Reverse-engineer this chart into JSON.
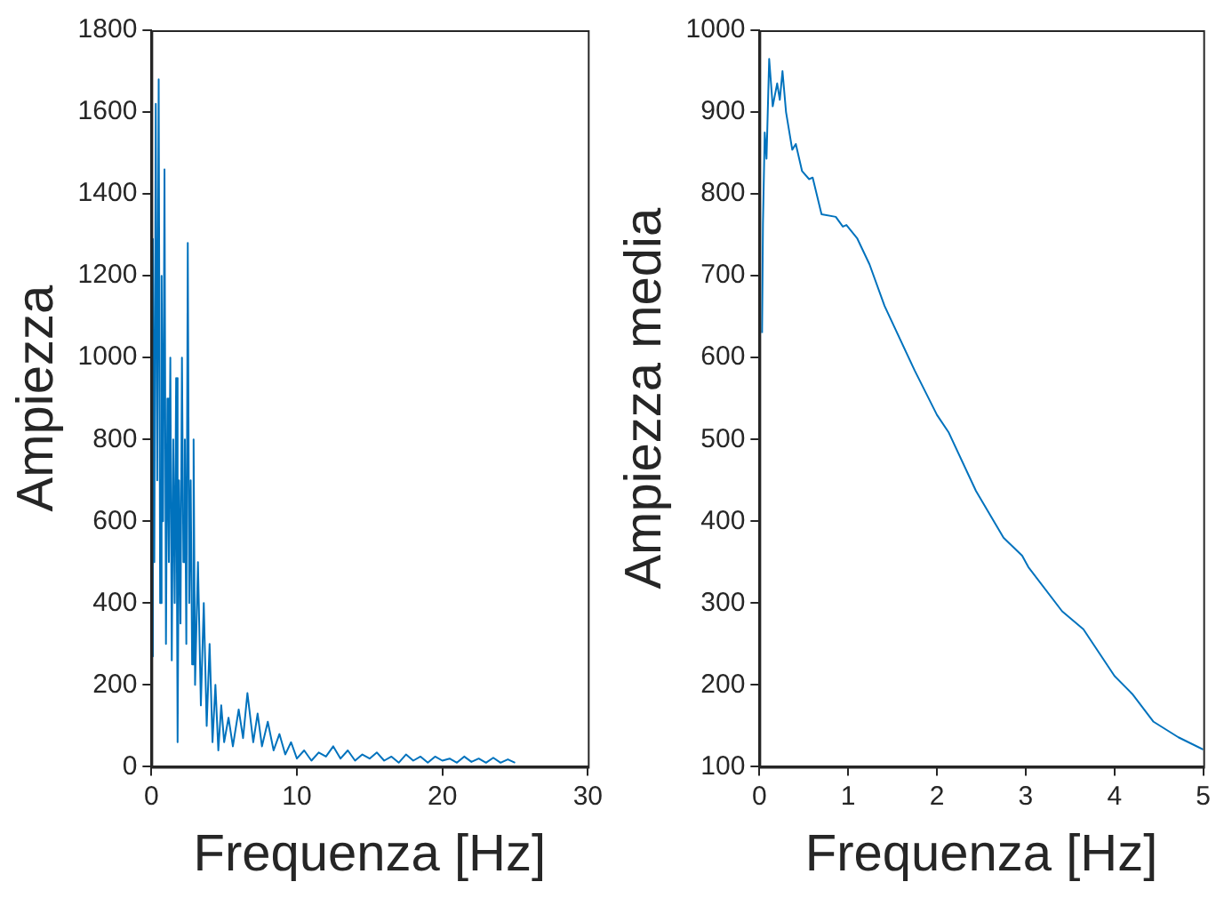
{
  "chart_data": [
    {
      "type": "line",
      "xlabel": "Frequenza [Hz]",
      "ylabel": "Ampiezza",
      "xlim": [
        0,
        30
      ],
      "xticks": [
        0,
        10,
        20,
        30
      ],
      "ylim": [
        0,
        1800
      ],
      "yticks": [
        0,
        200,
        400,
        600,
        800,
        1000,
        1200,
        1400,
        1600,
        1800
      ],
      "grid": false,
      "legend": false,
      "marker": "none",
      "line_style": "solid",
      "series": [
        {
          "color": "#0072bd",
          "x": [
            0.05,
            0.1,
            0.2,
            0.3,
            0.4,
            0.5,
            0.6,
            0.7,
            0.8,
            0.9,
            1.0,
            1.1,
            1.2,
            1.3,
            1.4,
            1.5,
            1.6,
            1.7,
            1.8,
            1.9,
            2.0,
            2.1,
            2.2,
            2.3,
            2.4,
            2.5,
            2.6,
            2.7,
            2.8,
            2.9,
            3.0,
            3.2,
            3.4,
            3.6,
            3.8,
            4.0,
            4.2,
            4.4,
            4.6,
            4.8,
            5.0,
            5.3,
            5.6,
            6.0,
            6.3,
            6.6,
            7.0,
            7.3,
            7.6,
            8.0,
            8.4,
            8.8,
            9.2,
            9.6,
            10,
            10.5,
            11,
            11.5,
            12,
            12.5,
            13,
            13.5,
            14,
            14.5,
            15,
            15.5,
            16,
            16.5,
            17,
            17.5,
            18,
            18.5,
            19,
            19.5,
            20,
            20.5,
            21,
            21.5,
            22,
            22.5,
            23,
            23.5,
            24,
            24.5,
            25
          ],
          "values": [
            270,
            1290,
            500,
            1620,
            700,
            1680,
            400,
            1200,
            600,
            1460,
            300,
            900,
            500,
            1000,
            260,
            800,
            400,
            950,
            60,
            700,
            350,
            1000,
            500,
            800,
            300,
            1280,
            400,
            700,
            250,
            800,
            200,
            500,
            150,
            400,
            100,
            300,
            60,
            200,
            40,
            150,
            60,
            120,
            50,
            140,
            70,
            180,
            60,
            130,
            50,
            110,
            40,
            80,
            30,
            60,
            20,
            40,
            15,
            35,
            25,
            50,
            20,
            40,
            15,
            30,
            20,
            35,
            15,
            25,
            10,
            30,
            15,
            25,
            10,
            25,
            15,
            20,
            10,
            25,
            12,
            20,
            10,
            22,
            10,
            18,
            10
          ]
        }
      ]
    },
    {
      "type": "line",
      "xlabel": "Frequenza [Hz]",
      "ylabel": "Ampiezza media",
      "xlim": [
        0,
        5
      ],
      "xticks": [
        0,
        1,
        2,
        3,
        4,
        5
      ],
      "ylim": [
        100,
        1000
      ],
      "yticks": [
        100,
        200,
        300,
        400,
        500,
        600,
        700,
        800,
        900,
        1000
      ],
      "grid": false,
      "legend": false,
      "marker": "none",
      "line_style": "solid",
      "series": [
        {
          "color": "#0072bd",
          "x": [
            0.03,
            0.04,
            0.06,
            0.08,
            0.11,
            0.15,
            0.2,
            0.23,
            0.26,
            0.3,
            0.37,
            0.41,
            0.48,
            0.56,
            0.6,
            0.7,
            0.86,
            0.94,
            0.98,
            1.1,
            1.24,
            1.41,
            1.75,
            2.0,
            2.13,
            2.44,
            2.75,
            2.96,
            3.03,
            3.41,
            3.65,
            4.0,
            4.2,
            4.44,
            4.72,
            5.0
          ],
          "values": [
            630,
            764,
            875,
            843,
            965,
            907,
            935,
            915,
            950,
            900,
            854,
            861,
            828,
            818,
            820,
            775,
            772,
            760,
            762,
            746,
            714,
            663,
            584,
            530,
            509,
            437,
            380,
            358,
            344,
            290,
            268,
            211,
            189,
            155,
            136,
            121
          ]
        }
      ]
    }
  ]
}
